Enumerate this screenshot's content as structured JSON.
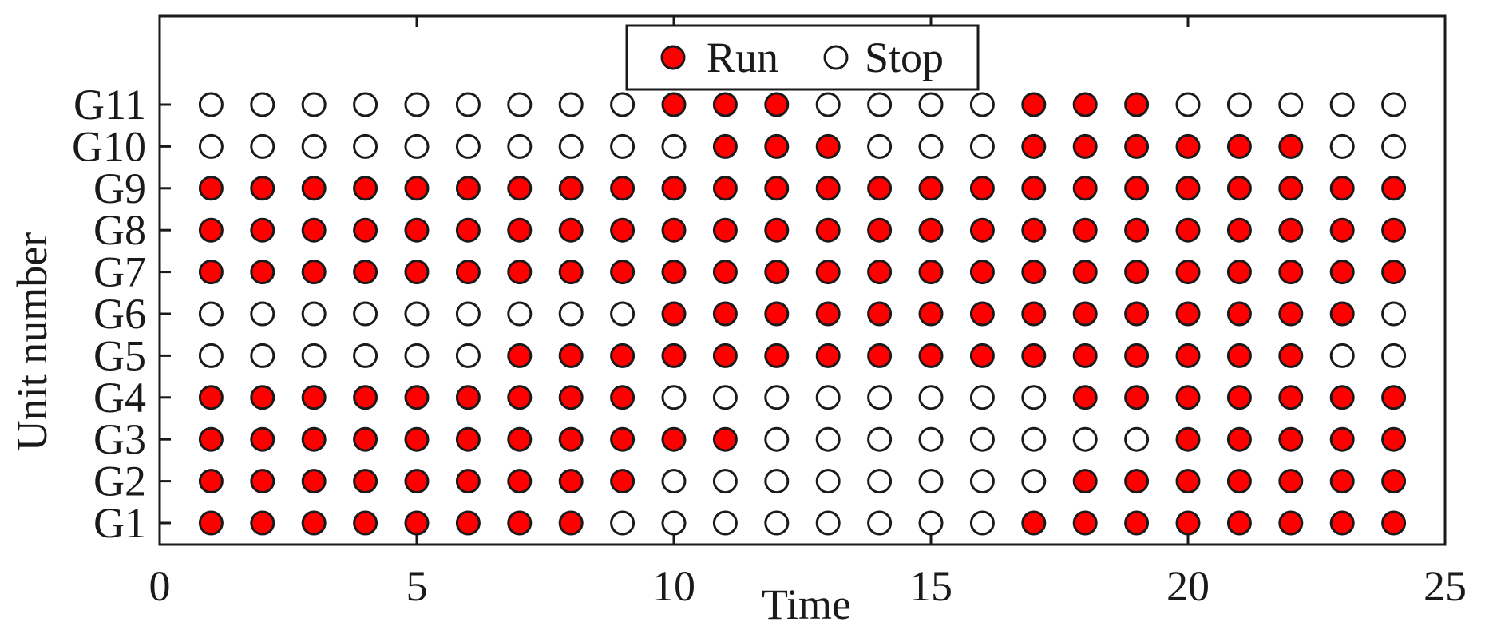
{
  "chart_data": {
    "type": "scatter",
    "xlabel": "Time",
    "ylabel": "Unit number",
    "xlim": [
      0,
      25
    ],
    "x_ticks": [
      0,
      5,
      10,
      15,
      20,
      25
    ],
    "x_tick_labels": [
      "0",
      "5",
      "10",
      "15",
      "20",
      "25"
    ],
    "units": [
      "G1",
      "G2",
      "G3",
      "G4",
      "G5",
      "G6",
      "G7",
      "G8",
      "G9",
      "G10",
      "G11"
    ],
    "times": [
      1,
      2,
      3,
      4,
      5,
      6,
      7,
      8,
      9,
      10,
      11,
      12,
      13,
      14,
      15,
      16,
      17,
      18,
      19,
      20,
      21,
      22,
      23,
      24
    ],
    "legend": {
      "position": "top-center",
      "entries": [
        {
          "label": "Run",
          "color": "#ff0000"
        },
        {
          "label": "Stop",
          "color": "#ffffff"
        }
      ]
    },
    "status": {
      "G1": [
        1,
        1,
        1,
        1,
        1,
        1,
        1,
        1,
        0,
        0,
        0,
        0,
        0,
        0,
        0,
        0,
        1,
        1,
        1,
        1,
        1,
        1,
        1,
        1
      ],
      "G2": [
        1,
        1,
        1,
        1,
        1,
        1,
        1,
        1,
        1,
        0,
        0,
        0,
        0,
        0,
        0,
        0,
        0,
        1,
        1,
        1,
        1,
        1,
        1,
        1
      ],
      "G3": [
        1,
        1,
        1,
        1,
        1,
        1,
        1,
        1,
        1,
        1,
        1,
        0,
        0,
        0,
        0,
        0,
        0,
        0,
        0,
        1,
        1,
        1,
        1,
        1
      ],
      "G4": [
        1,
        1,
        1,
        1,
        1,
        1,
        1,
        1,
        1,
        0,
        0,
        0,
        0,
        0,
        0,
        0,
        0,
        1,
        1,
        1,
        1,
        1,
        1,
        1
      ],
      "G5": [
        0,
        0,
        0,
        0,
        0,
        0,
        1,
        1,
        1,
        1,
        1,
        1,
        1,
        1,
        1,
        1,
        1,
        1,
        1,
        1,
        1,
        1,
        0,
        0
      ],
      "G6": [
        0,
        0,
        0,
        0,
        0,
        0,
        0,
        0,
        0,
        1,
        1,
        1,
        1,
        1,
        1,
        1,
        1,
        1,
        1,
        1,
        1,
        1,
        1,
        0
      ],
      "G7": [
        1,
        1,
        1,
        1,
        1,
        1,
        1,
        1,
        1,
        1,
        1,
        1,
        1,
        1,
        1,
        1,
        1,
        1,
        1,
        1,
        1,
        1,
        1,
        1
      ],
      "G8": [
        1,
        1,
        1,
        1,
        1,
        1,
        1,
        1,
        1,
        1,
        1,
        1,
        1,
        1,
        1,
        1,
        1,
        1,
        1,
        1,
        1,
        1,
        1,
        1
      ],
      "G9": [
        1,
        1,
        1,
        1,
        1,
        1,
        1,
        1,
        1,
        1,
        1,
        1,
        1,
        1,
        1,
        1,
        1,
        1,
        1,
        1,
        1,
        1,
        1,
        1
      ],
      "G10": [
        0,
        0,
        0,
        0,
        0,
        0,
        0,
        0,
        0,
        0,
        1,
        1,
        1,
        0,
        0,
        0,
        1,
        1,
        1,
        1,
        1,
        1,
        0,
        0
      ],
      "G11": [
        0,
        0,
        0,
        0,
        0,
        0,
        0,
        0,
        0,
        1,
        1,
        1,
        0,
        0,
        0,
        0,
        1,
        1,
        1,
        0,
        0,
        0,
        0,
        0
      ]
    },
    "grid": false
  }
}
